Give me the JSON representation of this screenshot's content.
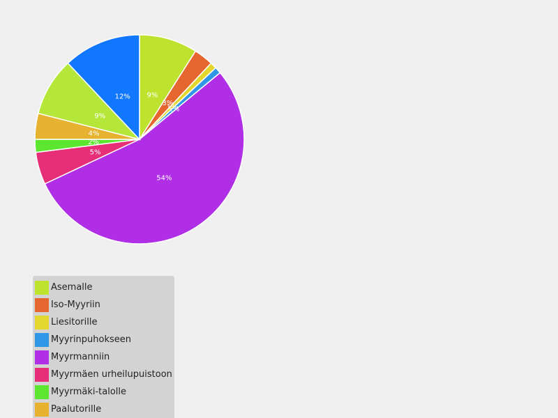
{
  "chart_data": {
    "type": "pie",
    "title": "",
    "start_angle_deg": 0,
    "slices": [
      {
        "label": "Asemalle",
        "value": 9,
        "percent_label": "9%",
        "color": "#bde32f"
      },
      {
        "label": "Iso-Myyriin",
        "value": 3,
        "percent_label": "3%",
        "color": "#e6662f"
      },
      {
        "label": "Liesitorille",
        "value": 1,
        "percent_label": "1%",
        "color": "#e3d72f"
      },
      {
        "label": "Myyrinpuhokseen",
        "value": 1,
        "percent_label": "1%",
        "color": "#2f97e6"
      },
      {
        "label": "Myyrmanniin",
        "value": 54,
        "percent_label": "54%",
        "color": "#b02fe6"
      },
      {
        "label": "Myyrmäen urheilupuistoon",
        "value": 5,
        "percent_label": "5%",
        "color": "#e62f78"
      },
      {
        "label": "Myyrmäki-talolle",
        "value": 2,
        "percent_label": "2%",
        "color": "#5ce62f"
      },
      {
        "label": "Paalutorille",
        "value": 4,
        "percent_label": "4%",
        "color": "#e6b22f"
      },
      {
        "label": "",
        "value": 9,
        "percent_label": "9%",
        "color": "#b5e63a"
      },
      {
        "label": "",
        "value": 12,
        "percent_label": "12%",
        "color": "#1177ff"
      }
    ],
    "legend_position": "bottom-left"
  }
}
